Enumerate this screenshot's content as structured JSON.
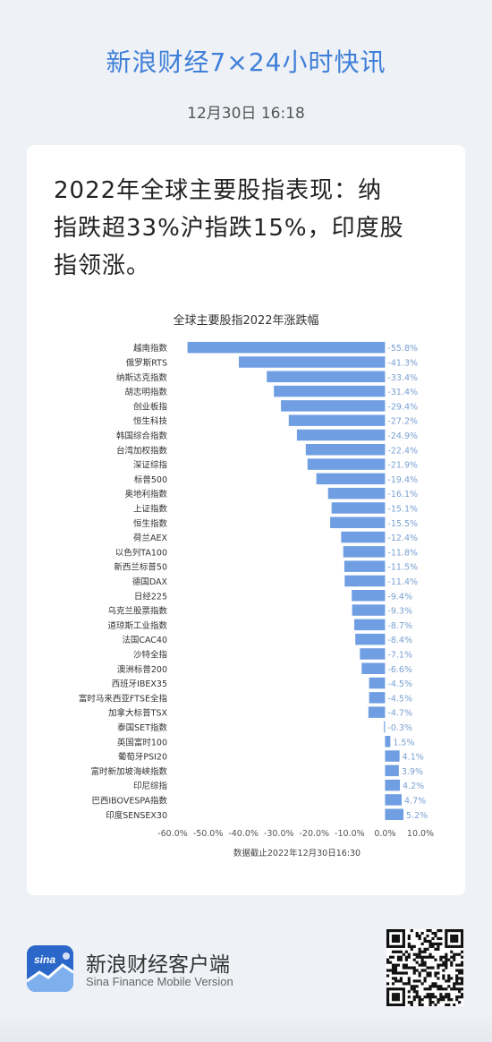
{
  "header": {
    "title": "新浪财经7×24小时快讯",
    "time": "12月30日 16:18"
  },
  "headline_lines": [
    "2022年全球主要股指表现：纳",
    "指跌超33%沪指跌15%，印度股",
    "指领涨。"
  ],
  "chart_data": {
    "type": "bar",
    "orientation": "horizontal",
    "title": "全球主要股指2022年涨跌幅",
    "categories": [
      "越南指数",
      "俄罗斯RTS",
      "纳斯达克指数",
      "胡志明指数",
      "创业板指",
      "恒生科技",
      "韩国综合指数",
      "台湾加权指数",
      "深证综指",
      "标普500",
      "奥地利指数",
      "上证指数",
      "恒生指数",
      "荷兰AEX",
      "以色列TA100",
      "新西兰标普50",
      "德国DAX",
      "日经225",
      "乌克兰股票指数",
      "道琼斯工业指数",
      "法国CAC40",
      "沙特全指",
      "澳洲标普200",
      "西班牙IBEX35",
      "富时马来西亚FTSE全指",
      "加拿大标普TSX",
      "泰国SET指数",
      "英国富时100",
      "葡萄牙PSI20",
      "富时新加坡海峡指数",
      "印尼综指",
      "巴西IBOVESPA指数",
      "印度SENSEX30"
    ],
    "values": [
      -55.8,
      -41.3,
      -33.4,
      -31.4,
      -29.4,
      -27.2,
      -24.9,
      -22.4,
      -21.9,
      -19.4,
      -16.1,
      -15.1,
      -15.5,
      -12.4,
      -11.8,
      -11.5,
      -11.4,
      -9.4,
      -9.3,
      -8.7,
      -8.4,
      -7.1,
      -6.6,
      -4.5,
      -4.5,
      -4.7,
      -0.3,
      1.5,
      4.1,
      3.9,
      4.2,
      4.7,
      5.2
    ],
    "data_labels": [
      "-55.8%",
      "-41.3%",
      "-33.4%",
      "-31.4%",
      "-29.4%",
      "-27.2%",
      "-24.9%",
      "-22.4%",
      "-21.9%",
      "-19.4%",
      "-16.1%",
      "-15.1%",
      "-15.5%",
      "-12.4%",
      "-11.8%",
      "-11.5%",
      "-11.4%",
      "-9.4%",
      "-9.3%",
      "-8.7%",
      "-8.4%",
      "-7.1%",
      "-6.6%",
      "-4.5%",
      "-4.5%",
      "-4.7%",
      "-0.3%",
      "1.5%",
      "4.1%",
      "3.9%",
      "4.2%",
      "4.7%",
      "5.2%"
    ],
    "xlim": [
      -60,
      10
    ],
    "xticks": [
      "-60.0%",
      "-50.0%",
      "-40.0%",
      "-30.0%",
      "-20.0%",
      "-10.0%",
      "0.0%",
      "10.0%"
    ],
    "note": "数据截止2022年12月30日16:30",
    "bar_color": "#6f9ee3",
    "label_color": "#7aa0d2",
    "grid": false
  },
  "footer": {
    "app_name": "新浪财经客户端",
    "app_sub": "Sina Finance Mobile Version",
    "logo_text": "sina"
  },
  "colors": {
    "accent": "#3f7fd8",
    "background": "#eef1f6"
  }
}
